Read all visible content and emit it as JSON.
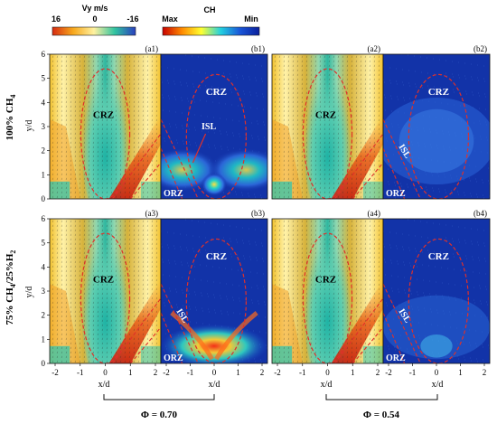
{
  "colorbars": {
    "vy": {
      "label": "Vy m/s",
      "min_label": "16",
      "mid_label": "0",
      "max_label": "-16",
      "colors": [
        "#d62a10",
        "#f7a81c",
        "#fff1a0",
        "#31c4a0",
        "#2a3fbf"
      ]
    },
    "ch": {
      "label": "CH",
      "min_label": "Max",
      "max_label": "Min",
      "colors": [
        "#c80000",
        "#ff8a00",
        "#ffff30",
        "#22d0e0",
        "#1a56d8",
        "#0a1f9c"
      ]
    }
  },
  "rows": [
    {
      "label_parts": [
        "100% CH",
        "4"
      ]
    },
    {
      "label_parts": [
        "75% CH",
        "4",
        "/25%H",
        "2"
      ]
    }
  ],
  "panels": [
    {
      "id": "(a1)",
      "kind": "velocity",
      "labels": [
        "CRZ"
      ]
    },
    {
      "id": "(b1)",
      "kind": "chemi",
      "labels": [
        "CRZ",
        "ISL",
        "ORZ"
      ],
      "style": "phi070_ch4"
    },
    {
      "id": "(a2)",
      "kind": "velocity",
      "labels": [
        "CRZ"
      ]
    },
    {
      "id": "(b2)",
      "kind": "chemi",
      "labels": [
        "CRZ",
        "ISL",
        "ORZ"
      ],
      "style": "phi054_ch4"
    },
    {
      "id": "(a3)",
      "kind": "velocity",
      "labels": [
        "CRZ"
      ]
    },
    {
      "id": "(b3)",
      "kind": "chemi",
      "labels": [
        "CRZ",
        "ISL",
        "ORZ"
      ],
      "style": "phi070_h2"
    },
    {
      "id": "(a4)",
      "kind": "velocity",
      "labels": [
        "CRZ"
      ]
    },
    {
      "id": "(b4)",
      "kind": "chemi",
      "labels": [
        "CRZ",
        "ISL",
        "ORZ"
      ],
      "style": "phi054_h2"
    }
  ],
  "axes": {
    "ylabel": "y/d",
    "xlabel": "x/d",
    "y_ticks": [
      "0",
      "1",
      "2",
      "3",
      "4",
      "5",
      "6"
    ],
    "x_ticks_velocity": [
      "-2",
      "-1",
      "0",
      "1",
      "2"
    ],
    "x_ticks_chemi": [
      "-2",
      "-1",
      "0",
      "1",
      "2"
    ]
  },
  "conditions": [
    {
      "label": "Φ = 0.70"
    },
    {
      "label": "Φ = 0.54"
    }
  ]
}
